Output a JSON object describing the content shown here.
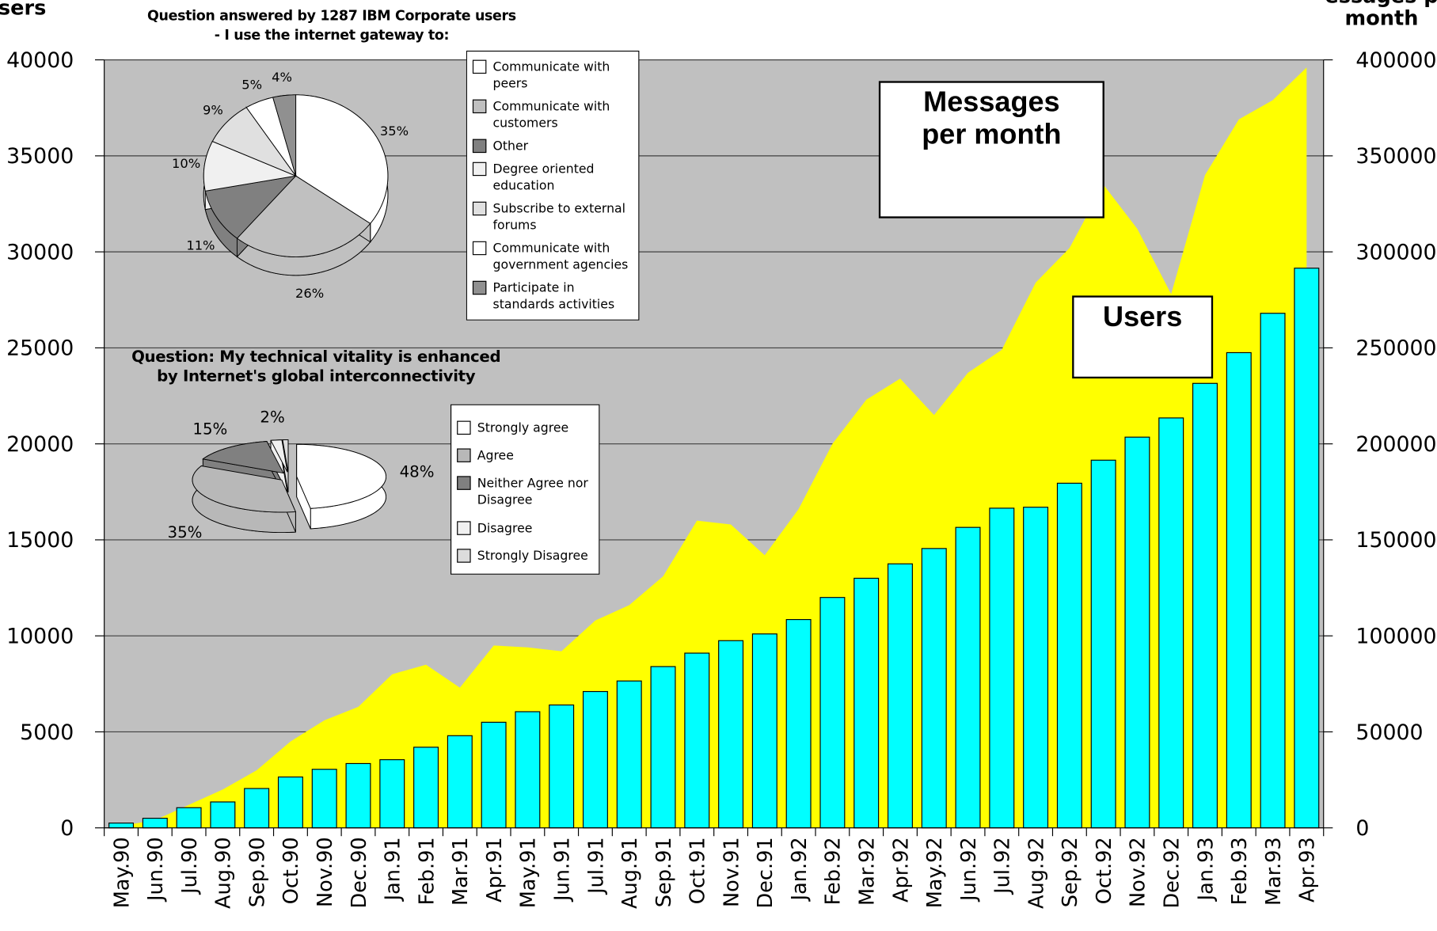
{
  "chart_data": [
    {
      "type": "combo",
      "y_label": "sers",
      "y2_label": [
        "essages p",
        "month"
      ],
      "categories": [
        "May.90",
        "Jun.90",
        "Jul.90",
        "Aug.90",
        "Sep.90",
        "Oct.90",
        "Nov.90",
        "Dec.90",
        "Jan.91",
        "Feb.91",
        "Mar.91",
        "Apr.91",
        "May.91",
        "Jun.91",
        "Jul.91",
        "Aug.91",
        "Sep.91",
        "Oct.91",
        "Nov.91",
        "Dec.91",
        "Jan.92",
        "Feb.92",
        "Mar.92",
        "Apr.92",
        "May.92",
        "Jun.92",
        "Jul.92",
        "Aug.92",
        "Sep.92",
        "Oct.92",
        "Nov.92",
        "Dec.92",
        "Jan.93",
        "Feb.93",
        "Mar.93",
        "Apr.93"
      ],
      "series": [
        {
          "name": "Users",
          "type": "bar",
          "color": "#00ffff",
          "values": [
            250,
            500,
            1050,
            1350,
            2050,
            2650,
            3050,
            3350,
            3550,
            4200,
            4800,
            5500,
            6050,
            6400,
            7100,
            7650,
            8400,
            9100,
            9750,
            10100,
            10850,
            12000,
            13000,
            13750,
            14550,
            15650,
            16650,
            16700,
            17950,
            19150,
            20350,
            21350,
            23150,
            24750,
            26800,
            29150
          ]
        },
        {
          "name": "Messages per month",
          "type": "area",
          "axis": "y2",
          "color": "#ffff00",
          "values": [
            1000,
            4000,
            12000,
            20000,
            30000,
            45000,
            56000,
            63000,
            80000,
            85000,
            73000,
            95000,
            94000,
            92000,
            108000,
            116000,
            131000,
            160000,
            158000,
            142000,
            166000,
            200000,
            223000,
            234000,
            215000,
            237000,
            249000,
            284000,
            302000,
            335000,
            312000,
            278000,
            340000,
            369000,
            379000,
            396000
          ]
        }
      ],
      "ylim": [
        0,
        40000
      ],
      "yticks": [
        0,
        5000,
        10000,
        15000,
        20000,
        25000,
        30000,
        35000,
        40000
      ],
      "y2lim": [
        0,
        400000
      ],
      "y2ticks": [
        0,
        50000,
        100000,
        150000,
        200000,
        250000,
        300000,
        350000,
        400000
      ],
      "grid": true,
      "background": "#c0c0c0"
    },
    {
      "type": "pie",
      "title": [
        "Question answered by 1287 IBM Corporate users",
        "- I use the internet gateway to:"
      ],
      "labels": [
        "Communicate with peers",
        "Communicate with customers",
        "Other",
        "Degree oriented education",
        "Subscribe to external forums",
        "Communicate with government agencies",
        "Participate in standards activities"
      ],
      "values": [
        35,
        26,
        11,
        10,
        9,
        5,
        4
      ],
      "value_labels": [
        "35%",
        "26%",
        "11%",
        "10%",
        "9%",
        "5%",
        "4%"
      ],
      "colors": [
        "#ffffff",
        "#c0c0c0",
        "#808080",
        "#f0f0f0",
        "#e0e0e0",
        "#ffffff",
        "#909090"
      ]
    },
    {
      "type": "pie",
      "title": [
        "Question: My technical vitality is enhanced",
        "by Internet's global interconnectivity"
      ],
      "labels": [
        "Strongly agree",
        "Agree",
        "Neither Agree nor Disagree",
        "Disagree",
        "Strongly Disagree"
      ],
      "values": [
        48,
        35,
        15,
        2,
        1
      ],
      "value_labels": [
        "48%",
        "35%",
        "15%",
        "2%",
        null
      ],
      "colors": [
        "#ffffff",
        "#b8b8b8",
        "#808080",
        "#f0f0f0",
        "#dcdcdc"
      ]
    }
  ]
}
